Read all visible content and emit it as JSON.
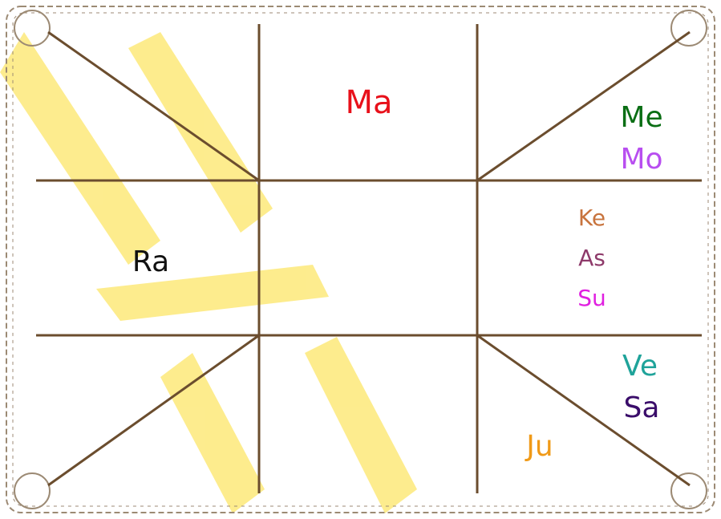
{
  "planets": [
    {
      "label": "Ma",
      "color": "#e8101a"
    },
    {
      "label": "Me",
      "color": "#0a6e14"
    },
    {
      "label": "Mo",
      "color": "#b84ef0"
    },
    {
      "label": "Ke",
      "color": "#c8743e"
    },
    {
      "label": "As",
      "color": "#8e3a6a"
    },
    {
      "label": "Su",
      "color": "#e020e0"
    },
    {
      "label": "Ra",
      "color": "#111111"
    },
    {
      "label": "Ve",
      "color": "#1fa39a"
    },
    {
      "label": "Sa",
      "color": "#3a0d6a"
    },
    {
      "label": "Ju",
      "color": "#f09a18"
    }
  ]
}
